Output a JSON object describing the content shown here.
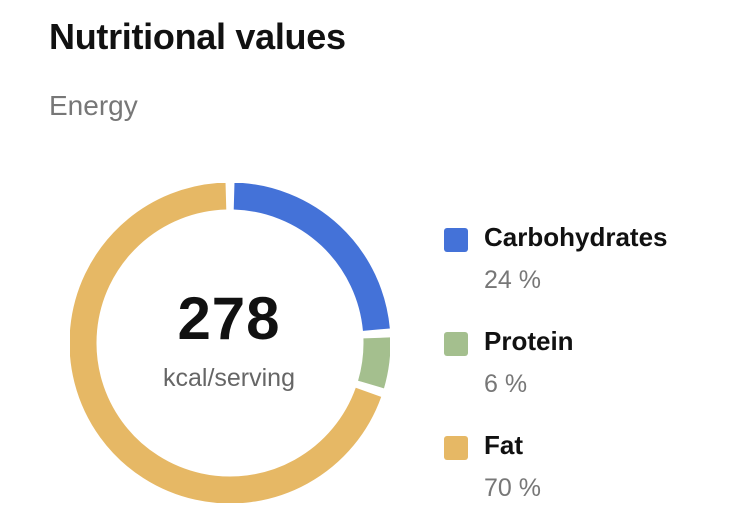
{
  "header": {
    "title": "Nutritional values",
    "subtitle": "Energy"
  },
  "summary": {
    "value": "278",
    "unit": "kcal/serving"
  },
  "legend": [
    {
      "label": "Carbohydrates",
      "value": "24 %",
      "color": "#4472d8"
    },
    {
      "label": "Protein",
      "value": "6 %",
      "color": "#a4bf8e"
    },
    {
      "label": "Fat",
      "value": "70 %",
      "color": "#e6b865"
    }
  ],
  "chart_data": {
    "type": "pie",
    "categories": [
      "Carbohydrates",
      "Protein",
      "Fat"
    ],
    "values": [
      24,
      6,
      70
    ],
    "colors": [
      "#4472d8",
      "#a4bf8e",
      "#e6b865"
    ],
    "legend": "right"
  }
}
